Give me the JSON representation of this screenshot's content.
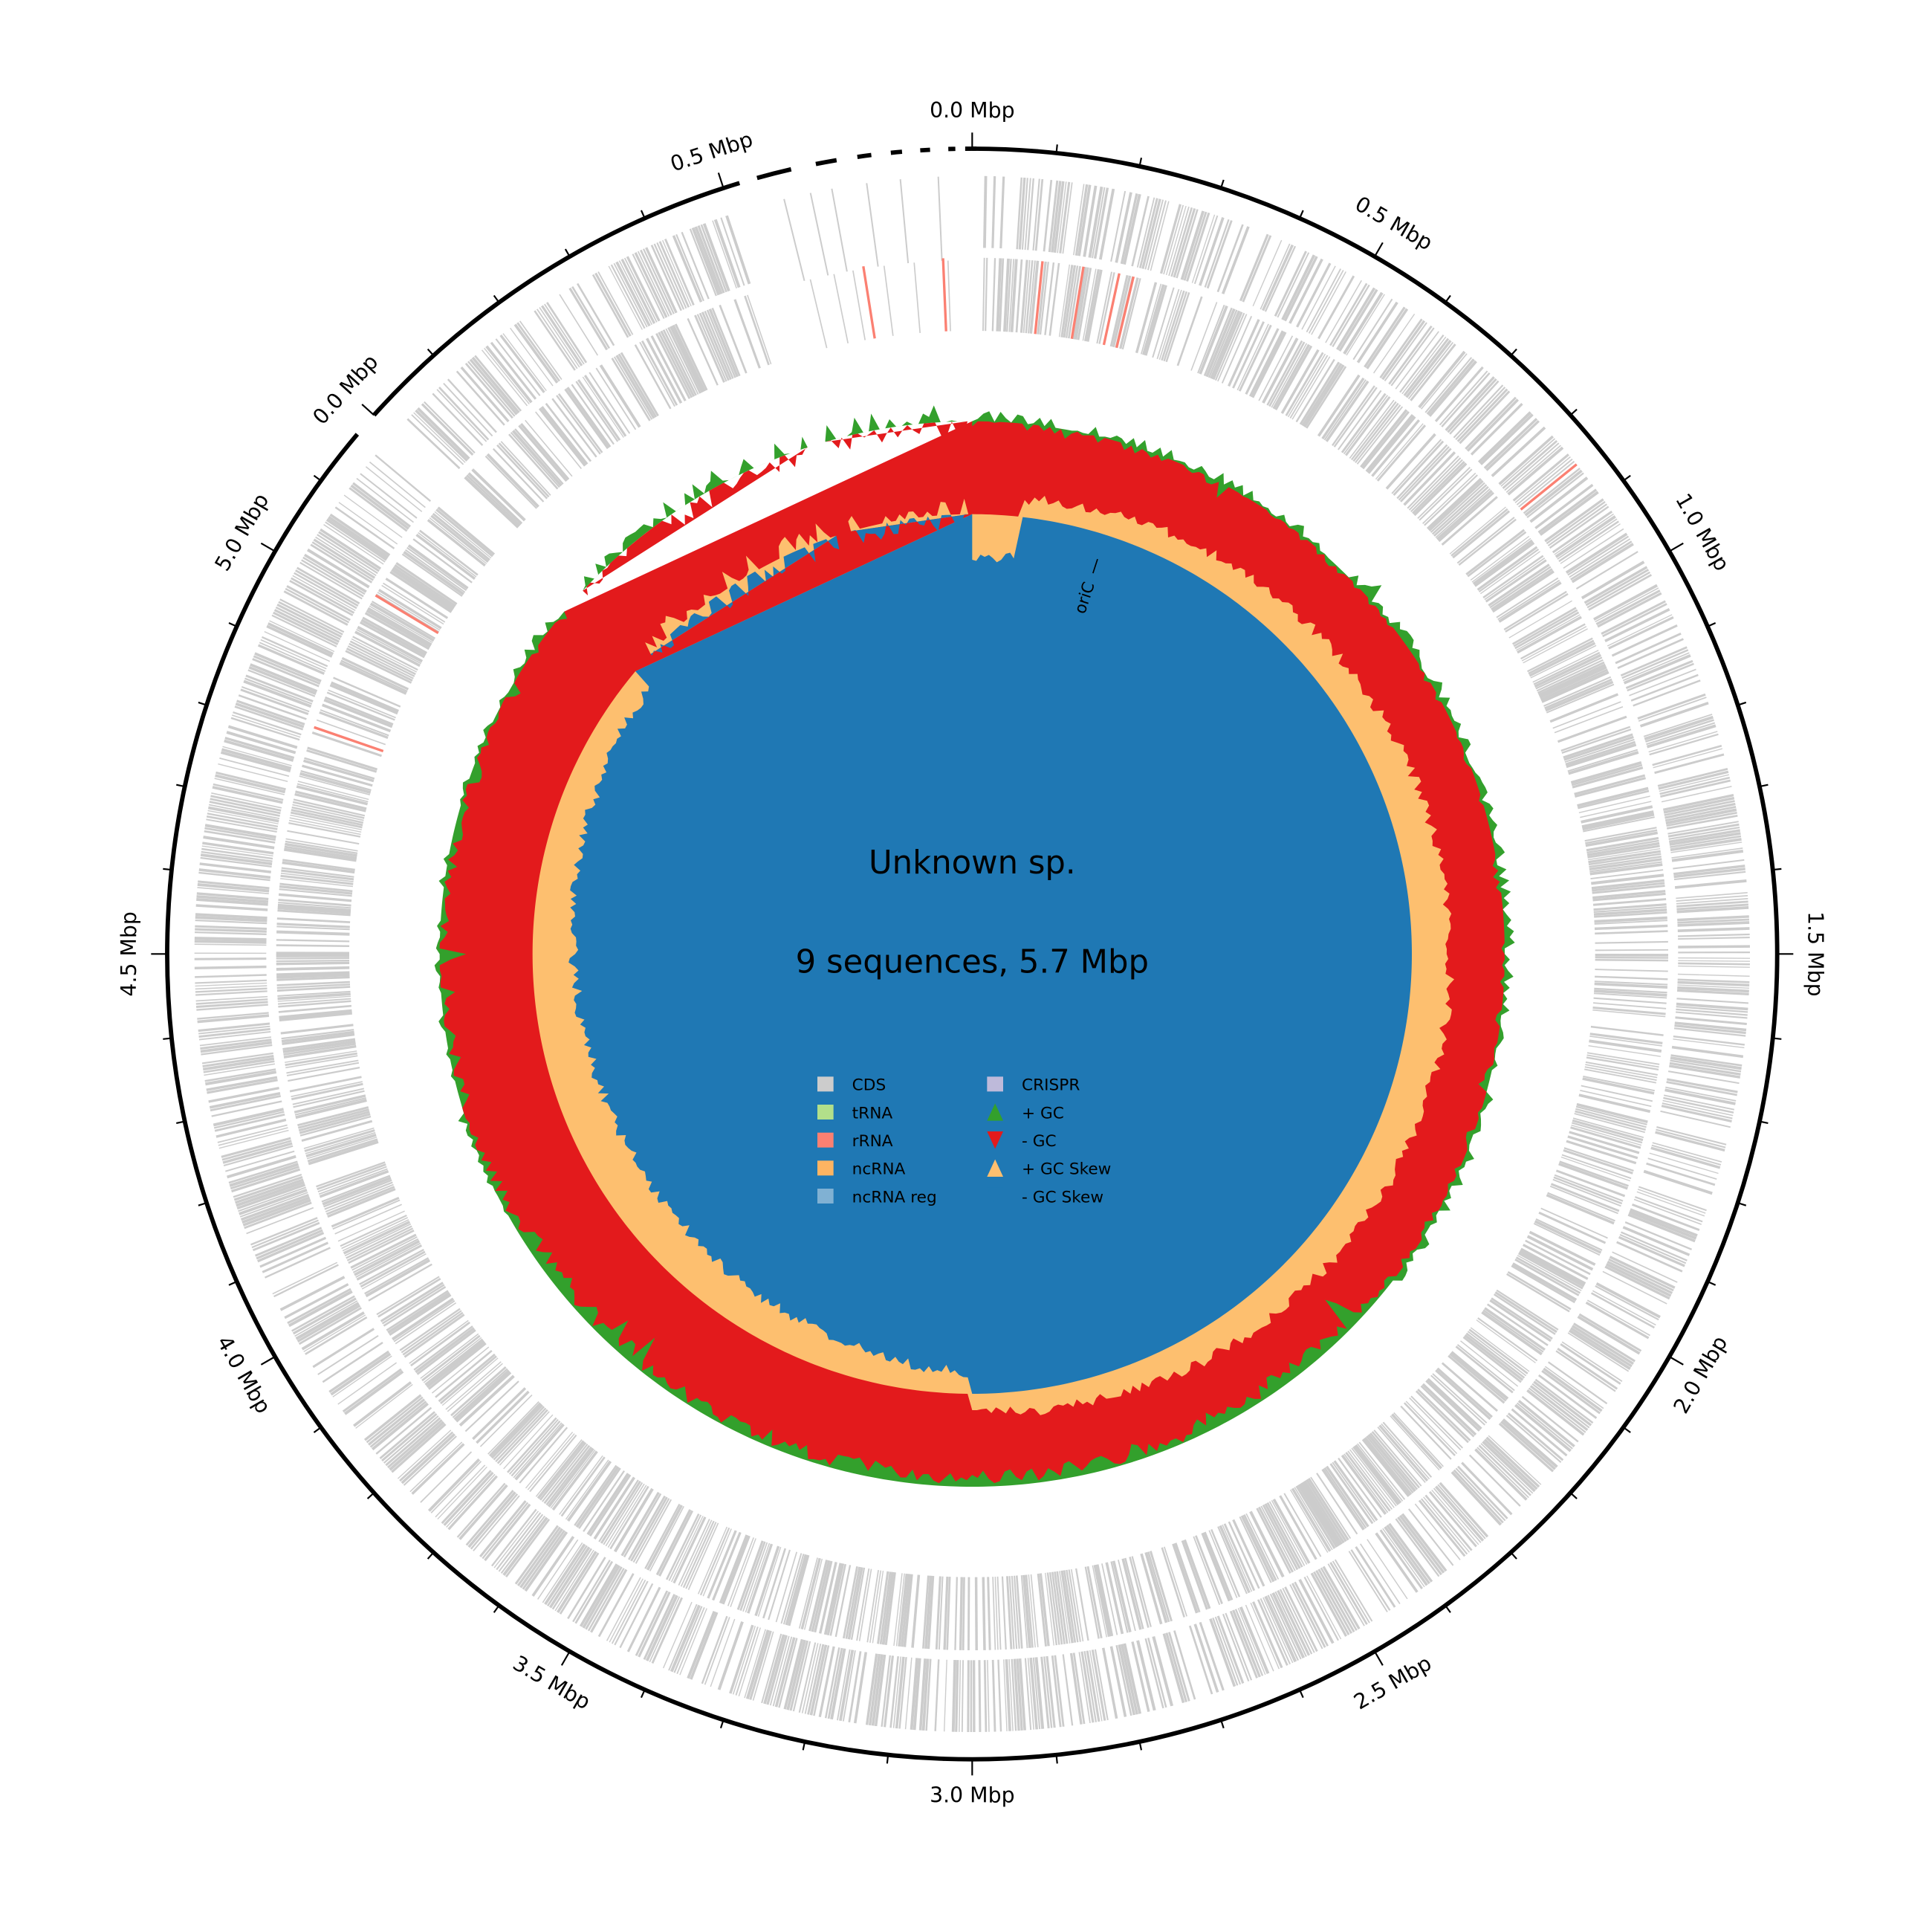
{
  "chart_data": {
    "type": "circular-genome",
    "title": "Unknown sp.",
    "subtitle": "9 sequences, 5.7 Mbp",
    "origin_label": "oriC",
    "tick_unit": "Mbp",
    "tick_step_major_mbp": 0.5,
    "tick_step_minor_mbp": 0.1,
    "contigs": [
      {
        "tick_labels": [
          "0.0 Mbp",
          "0.5 Mbp",
          "1.0 Mbp",
          "1.5 Mbp",
          "2.0 Mbp",
          "2.5 Mbp",
          "3.0 Mbp",
          "3.5 Mbp",
          "4.0 Mbp",
          "4.5 Mbp",
          "5.0 Mbp"
        ]
      },
      {
        "tick_labels": [
          "0.0 Mbp",
          "0.5 Mbp"
        ]
      }
    ],
    "tracks": [
      "CDS forward strand",
      "CDS reverse strand",
      "GC content",
      "GC skew"
    ],
    "gc_skew_sign": [
      {
        "from_mbp": 0.0,
        "to_mbp": 0.1,
        "sign": "-"
      },
      {
        "from_mbp": 0.1,
        "to_mbp": 3.0,
        "sign": "+"
      },
      {
        "from_mbp": 3.0,
        "to_mbp": 5.2,
        "sign": "-"
      }
    ],
    "legend": {
      "placement": "center",
      "items": [
        {
          "label": "CDS",
          "color": "#cccccc",
          "marker": "square"
        },
        {
          "label": "tRNA",
          "color": "#b2df8a",
          "marker": "square"
        },
        {
          "label": "rRNA",
          "color": "#fb8072",
          "marker": "square"
        },
        {
          "label": "ncRNA",
          "color": "#fdb462",
          "marker": "square"
        },
        {
          "label": "ncRNA reg",
          "color": "#80b1d3",
          "marker": "square"
        },
        {
          "label": "CRISPR",
          "color": "#bebada",
          "marker": "square"
        },
        {
          "label": "+ GC",
          "color": "#33a02c",
          "marker": "triangle-up"
        },
        {
          "label": "- GC",
          "color": "#e31a1c",
          "marker": "triangle-down"
        },
        {
          "label": "+ GC Skew",
          "color": "#fdbf6f",
          "marker": "triangle-up"
        },
        {
          "label": "- GC Skew",
          "color": "#1f78b4",
          "marker": "triangle-down"
        }
      ]
    }
  }
}
